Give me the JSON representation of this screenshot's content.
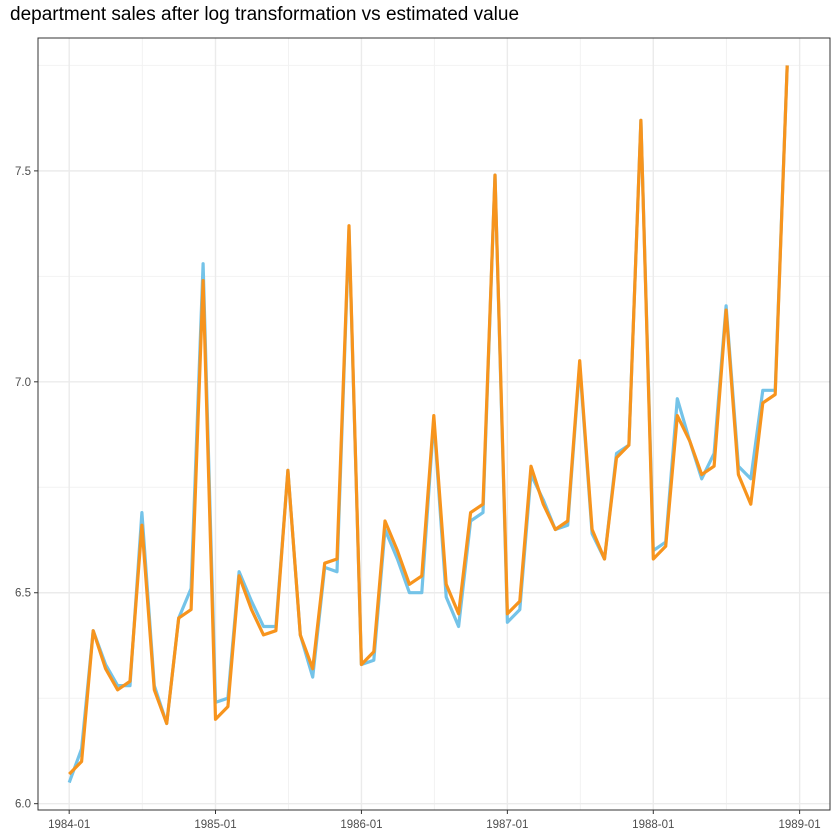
{
  "chart_data": {
    "type": "line",
    "title": "department sales after log transformation vs estimated value",
    "xlabel": "",
    "ylabel": "",
    "x": [
      "1984-01",
      "1984-02",
      "1984-03",
      "1984-04",
      "1984-05",
      "1984-06",
      "1984-07",
      "1984-08",
      "1984-09",
      "1984-10",
      "1984-11",
      "1984-12",
      "1985-01",
      "1985-02",
      "1985-03",
      "1985-04",
      "1985-05",
      "1985-06",
      "1985-07",
      "1985-08",
      "1985-09",
      "1985-10",
      "1985-11",
      "1985-12",
      "1986-01",
      "1986-02",
      "1986-03",
      "1986-04",
      "1986-05",
      "1986-06",
      "1986-07",
      "1986-08",
      "1986-09",
      "1986-10",
      "1986-11",
      "1986-12",
      "1987-01",
      "1987-02",
      "1987-03",
      "1987-04",
      "1987-05",
      "1987-06",
      "1987-07",
      "1987-08",
      "1987-09",
      "1987-10",
      "1987-11",
      "1987-12",
      "1988-01",
      "1988-02",
      "1988-03",
      "1988-04",
      "1988-05",
      "1988-06",
      "1988-07",
      "1988-08",
      "1988-09",
      "1988-10",
      "1988-11",
      "1988-12"
    ],
    "series": [
      {
        "color": "#74c3e8",
        "values": [
          6.05,
          6.13,
          6.41,
          6.33,
          6.28,
          6.28,
          6.69,
          6.28,
          6.19,
          6.44,
          6.51,
          7.28,
          6.24,
          6.25,
          6.55,
          6.48,
          6.42,
          6.42,
          6.79,
          6.4,
          6.3,
          6.56,
          6.55,
          7.36,
          6.33,
          6.34,
          6.65,
          6.58,
          6.5,
          6.5,
          6.91,
          6.49,
          6.42,
          6.67,
          6.69,
          7.49,
          6.43,
          6.46,
          6.78,
          6.72,
          6.65,
          6.66,
          7.04,
          6.64,
          6.58,
          6.83,
          6.85,
          7.62,
          6.6,
          6.62,
          6.96,
          6.86,
          6.77,
          6.83,
          7.18,
          6.8,
          6.77,
          6.98,
          6.98,
          7.75
        ]
      },
      {
        "color": "#f7941d",
        "values": [
          6.07,
          6.1,
          6.41,
          6.32,
          6.27,
          6.29,
          6.66,
          6.27,
          6.19,
          6.44,
          6.46,
          7.24,
          6.2,
          6.23,
          6.54,
          6.46,
          6.4,
          6.41,
          6.79,
          6.4,
          6.32,
          6.57,
          6.58,
          7.37,
          6.33,
          6.36,
          6.67,
          6.6,
          6.52,
          6.54,
          6.92,
          6.52,
          6.45,
          6.69,
          6.71,
          7.49,
          6.45,
          6.48,
          6.8,
          6.71,
          6.65,
          6.67,
          7.05,
          6.65,
          6.58,
          6.82,
          6.85,
          7.62,
          6.58,
          6.61,
          6.92,
          6.86,
          6.78,
          6.8,
          7.17,
          6.78,
          6.71,
          6.95,
          6.97,
          7.75
        ]
      }
    ],
    "xticks": [
      "1984-01",
      "1985-01",
      "1986-01",
      "1987-01",
      "1988-01",
      "1989-01"
    ],
    "yticks": [
      "6.0",
      "6.5",
      "7.0",
      "7.5"
    ],
    "ylim": [
      5.985,
      7.815
    ],
    "xlim": [
      "1983-10-15",
      "1989-03-18"
    ],
    "grid": true,
    "theme": "bw"
  }
}
